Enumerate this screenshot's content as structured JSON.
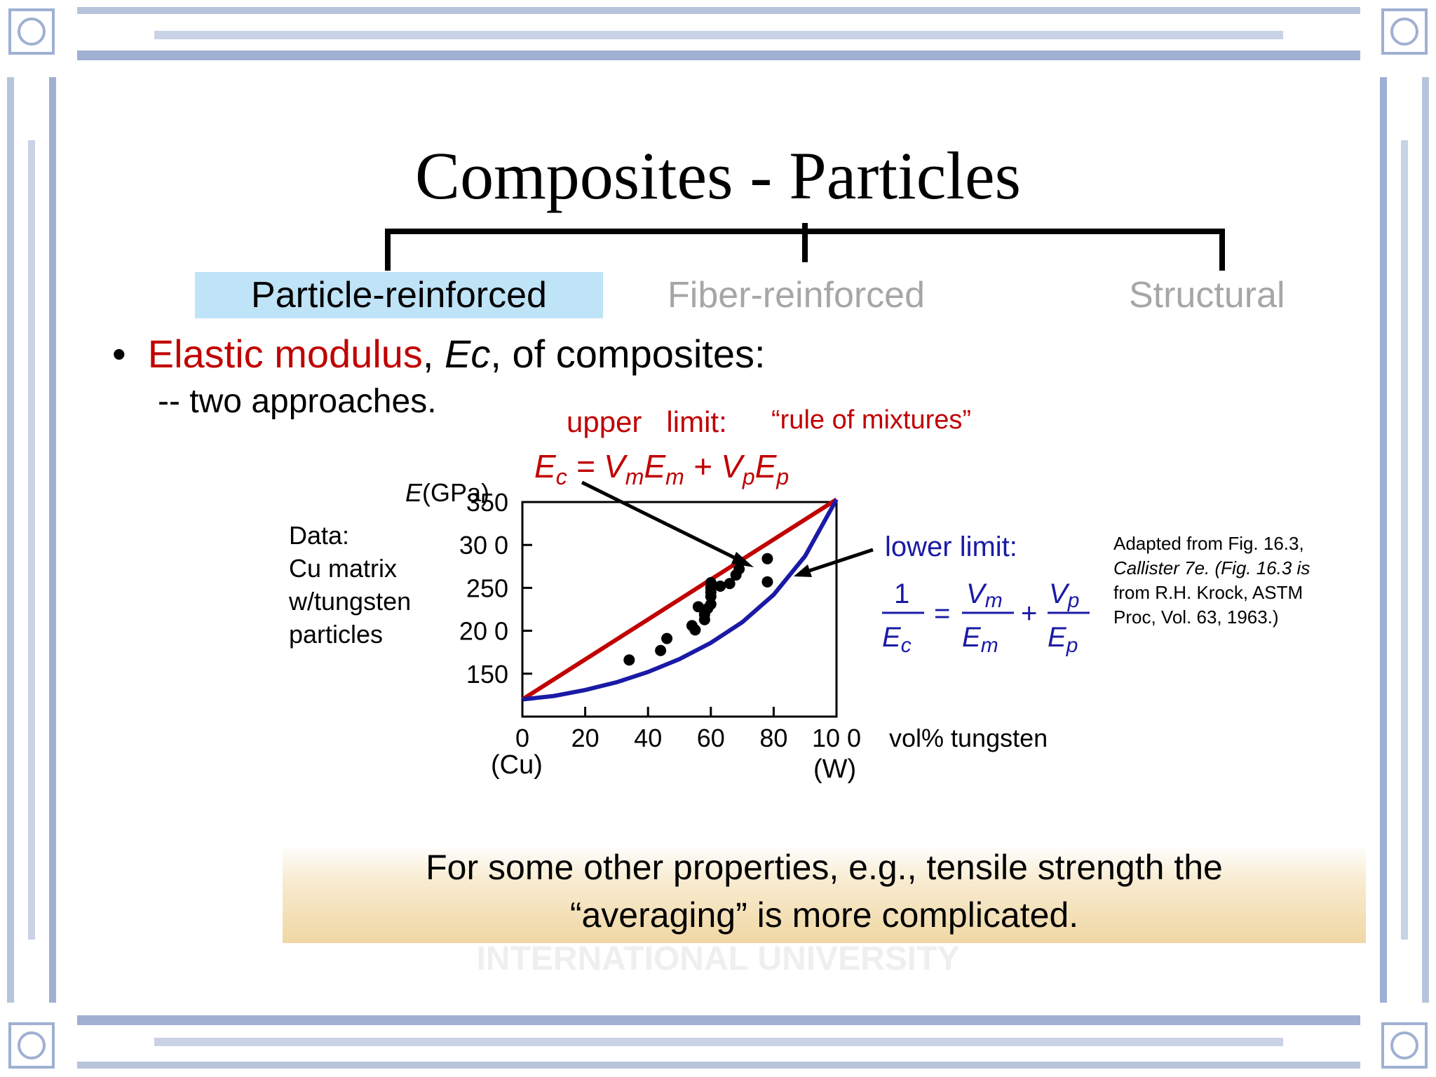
{
  "slide": {
    "title": "Composites - Particles",
    "watermark": "INTERNATIONAL UNIVERSITY",
    "colors": {
      "frame": "#b8c4dc",
      "frame_dark": "#7d8fb8",
      "accent_red": "#c00000",
      "accent_blue": "#1a1aa6",
      "tab_highlight": "#bfe3f7",
      "tab_inactive": "#a6a6a6"
    }
  },
  "tabs": [
    {
      "label": "Particle-reinforced",
      "active": true
    },
    {
      "label": "Fiber-reinforced",
      "active": false
    },
    {
      "label": "Structural",
      "active": false
    }
  ],
  "bullet": {
    "mark": "•",
    "red_part": "Elastic modulus",
    "comma": ", ",
    "symbol": "Ec",
    "rest": ", of composites:",
    "sub": "-- two approaches."
  },
  "upper": {
    "label": "upper   limit:",
    "quote": "“rule of mixtures”",
    "formula": "Ec = VmEm + VpEp"
  },
  "lower": {
    "label": "lower limit:",
    "formula": "1/Ec = Vm/Em + Vp/Ep"
  },
  "data_note": [
    "Data:",
    "Cu matrix",
    "w/tungsten",
    "particles"
  ],
  "citation": [
    "Adapted from Fig. 16.3,",
    "Callister 7e.  (Fig. 16.3 is",
    "from R.H. Krock, ASTM",
    "Proc, Vol. 63, 1963.)"
  ],
  "axis": {
    "x_end_left": "(Cu)",
    "x_end_right": "(W)",
    "x_unit": "vol% tungsten"
  },
  "chart_data": {
    "type": "scatter",
    "xlabel": "vol% tungsten",
    "ylabel": "E(GPa)",
    "xlim": [
      0,
      100
    ],
    "ylim": [
      100,
      350
    ],
    "x_ticks": [
      "0",
      "20",
      "40",
      "60",
      "80",
      "10 0"
    ],
    "y_ticks": [
      "350",
      "30 0",
      "250",
      "20 0",
      "150"
    ],
    "y_tick_values": [
      350,
      300,
      250,
      200,
      150
    ],
    "x_tick_values": [
      0,
      20,
      40,
      60,
      80,
      100
    ],
    "series": [
      {
        "kind": "line",
        "color": "#c00000",
        "points": [
          [
            0,
            120
          ],
          [
            100,
            353
          ]
        ]
      },
      {
        "kind": "curve",
        "color": "#1a1aa6",
        "points": [
          [
            0,
            120
          ],
          [
            10,
            124
          ],
          [
            20,
            131
          ],
          [
            30,
            140
          ],
          [
            40,
            152
          ],
          [
            50,
            167
          ],
          [
            60,
            186
          ],
          [
            70,
            210
          ],
          [
            80,
            242
          ],
          [
            90,
            287
          ],
          [
            100,
            353
          ]
        ]
      },
      {
        "kind": "points",
        "color": "#000000",
        "points": [
          [
            34,
            166
          ],
          [
            44,
            177
          ],
          [
            46,
            191
          ],
          [
            54,
            206
          ],
          [
            55,
            201
          ],
          [
            56,
            228
          ],
          [
            58,
            213
          ],
          [
            58,
            219
          ],
          [
            59,
            226
          ],
          [
            60,
            231
          ],
          [
            60,
            240
          ],
          [
            60,
            245
          ],
          [
            60,
            250
          ],
          [
            60,
            256
          ],
          [
            63,
            252
          ],
          [
            66,
            255
          ],
          [
            68,
            265
          ],
          [
            69,
            272
          ],
          [
            78,
            284
          ],
          [
            78,
            257
          ]
        ]
      }
    ]
  }
}
